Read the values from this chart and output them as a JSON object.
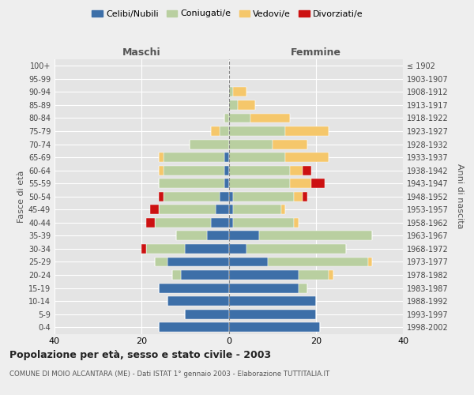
{
  "age_groups": [
    "0-4",
    "5-9",
    "10-14",
    "15-19",
    "20-24",
    "25-29",
    "30-34",
    "35-39",
    "40-44",
    "45-49",
    "50-54",
    "55-59",
    "60-64",
    "65-69",
    "70-74",
    "75-79",
    "80-84",
    "85-89",
    "90-94",
    "95-99",
    "100+"
  ],
  "birth_years": [
    "1998-2002",
    "1993-1997",
    "1988-1992",
    "1983-1987",
    "1978-1982",
    "1973-1977",
    "1968-1972",
    "1963-1967",
    "1958-1962",
    "1953-1957",
    "1948-1952",
    "1943-1947",
    "1938-1942",
    "1933-1937",
    "1928-1932",
    "1923-1927",
    "1918-1922",
    "1913-1917",
    "1908-1912",
    "1903-1907",
    "≤ 1902"
  ],
  "maschi_celibi": [
    16,
    10,
    14,
    16,
    11,
    14,
    10,
    5,
    4,
    3,
    2,
    1,
    1,
    1,
    0,
    0,
    0,
    0,
    0,
    0,
    0
  ],
  "maschi_coniugati": [
    0,
    0,
    0,
    0,
    2,
    3,
    9,
    7,
    13,
    13,
    13,
    15,
    14,
    14,
    9,
    2,
    1,
    0,
    0,
    0,
    0
  ],
  "maschi_vedovi": [
    0,
    0,
    0,
    0,
    0,
    0,
    0,
    0,
    0,
    0,
    0,
    0,
    1,
    1,
    0,
    2,
    0,
    0,
    0,
    0,
    0
  ],
  "maschi_divorziati": [
    0,
    0,
    0,
    0,
    0,
    0,
    1,
    0,
    2,
    2,
    1,
    0,
    0,
    0,
    0,
    0,
    0,
    0,
    0,
    0,
    0
  ],
  "femmine_nubili": [
    21,
    20,
    20,
    16,
    16,
    9,
    4,
    7,
    1,
    1,
    1,
    0,
    0,
    0,
    0,
    0,
    0,
    0,
    0,
    0,
    0
  ],
  "femmine_coniugate": [
    0,
    0,
    0,
    2,
    7,
    23,
    23,
    26,
    14,
    11,
    14,
    14,
    14,
    13,
    10,
    13,
    5,
    2,
    1,
    0,
    0
  ],
  "femmine_vedove": [
    0,
    0,
    0,
    0,
    1,
    1,
    0,
    0,
    1,
    1,
    2,
    5,
    3,
    10,
    8,
    10,
    9,
    4,
    3,
    0,
    0
  ],
  "femmine_divorziate": [
    0,
    0,
    0,
    0,
    0,
    0,
    0,
    0,
    0,
    0,
    1,
    3,
    2,
    0,
    0,
    0,
    0,
    0,
    0,
    0,
    0
  ],
  "color_celibi": "#3d6fa8",
  "color_coniugati": "#b9cfa0",
  "color_vedovi": "#f5c76b",
  "color_divorziati": "#cc1111",
  "xlim": 40,
  "title": "Popolazione per età, sesso e stato civile - 2003",
  "subtitle": "COMUNE DI MOIO ALCANTARA (ME) - Dati ISTAT 1° gennaio 2003 - Elaborazione TUTTITALIA.IT",
  "ylabel_left": "Fasce di età",
  "ylabel_right": "Anni di nascita",
  "label_maschi": "Maschi",
  "label_femmine": "Femmine",
  "legend_labels": [
    "Celibi/Nubili",
    "Coniugati/e",
    "Vedovi/e",
    "Divorziati/e"
  ],
  "bg_color": "#eeeeee",
  "plot_bg": "#e4e4e4"
}
